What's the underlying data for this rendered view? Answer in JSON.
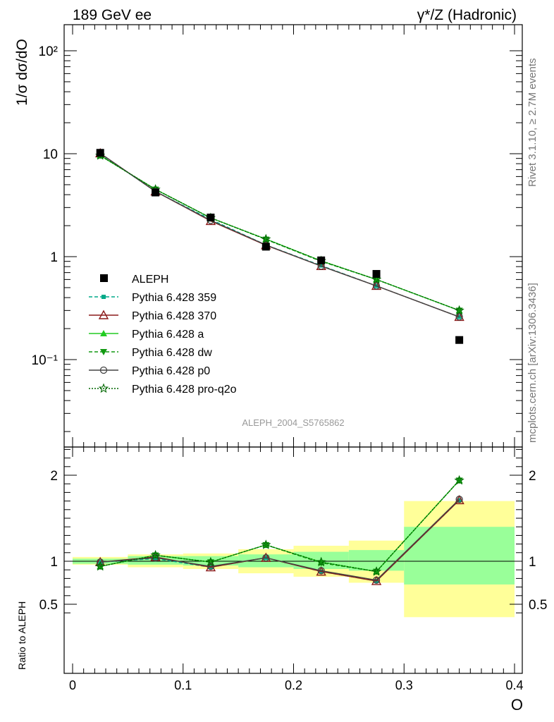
{
  "header": {
    "left": "189 GeV ee",
    "right": "γ*/Z (Hadronic)"
  },
  "side": {
    "rivet": "Rivet 3.1.10, ≥ 2.7M events",
    "mcplots": "mcplots.cern.ch [arXiv:1306.3436]"
  },
  "watermark": "ALEPH_2004_S5765862",
  "chart_data": {
    "type": "line",
    "xlabel": "O",
    "xlim": [
      0,
      0.4
    ],
    "x_ticks": [
      "0",
      "0.1",
      "0.2",
      "0.3",
      "0.4"
    ],
    "main": {
      "ylabel": "1/σ  dσ/dO",
      "yscale": "log",
      "ylim": [
        0.01,
        180
      ],
      "y_ticks": [
        "10⁻¹",
        "1",
        "10",
        "10²"
      ],
      "bins": [
        [
          0,
          0.05
        ],
        [
          0.05,
          0.1
        ],
        [
          0.1,
          0.15
        ],
        [
          0.15,
          0.2
        ],
        [
          0.2,
          0.25
        ],
        [
          0.25,
          0.3
        ],
        [
          0.3,
          0.4
        ]
      ],
      "x": [
        0.025,
        0.075,
        0.125,
        0.175,
        0.225,
        0.275,
        0.35
      ],
      "data": {
        "name": "ALEPH",
        "values": [
          10.2,
          4.2,
          2.4,
          1.25,
          0.92,
          0.68,
          0.155
        ]
      },
      "series": [
        {
          "name": "Pythia 6.428 359",
          "color": "#00aa88",
          "dash": "5,3",
          "marker": "square-small",
          "values": [
            10.0,
            4.3,
            2.3,
            1.3,
            0.82,
            0.52,
            0.26
          ]
        },
        {
          "name": "Pythia 6.428 370",
          "color": "#8b1a1a",
          "dash": "",
          "marker": "triangle-open",
          "values": [
            10.1,
            4.3,
            2.22,
            1.29,
            0.81,
            0.52,
            0.26
          ]
        },
        {
          "name": "Pythia 6.428 a",
          "color": "#22cc22",
          "dash": "",
          "marker": "triangle-filled",
          "values": [
            9.6,
            4.5,
            2.38,
            1.48,
            0.91,
            0.6,
            0.3
          ]
        },
        {
          "name": "Pythia 6.428 dw",
          "color": "#119911",
          "dash": "5,3",
          "marker": "triangle-down",
          "values": [
            9.6,
            4.5,
            2.38,
            1.47,
            0.9,
            0.6,
            0.3
          ]
        },
        {
          "name": "Pythia 6.428 p0",
          "color": "#444444",
          "dash": "",
          "marker": "circle-open",
          "values": [
            10.1,
            4.3,
            2.25,
            1.3,
            0.81,
            0.52,
            0.26
          ]
        },
        {
          "name": "Pythia 6.428 pro-q2o",
          "color": "#006600",
          "dash": "2,2",
          "marker": "star",
          "values": [
            9.6,
            4.5,
            2.38,
            1.48,
            0.91,
            0.6,
            0.3
          ]
        }
      ]
    },
    "ratio": {
      "ylabel": "Ratio to ALEPH",
      "ylim": [
        0.35,
        2.3
      ],
      "y_ticks": [
        "0.5",
        "1",
        "2"
      ],
      "band_outer": [
        [
          0.96,
          1.05
        ],
        [
          0.93,
          1.08
        ],
        [
          0.91,
          1.09
        ],
        [
          0.86,
          1.14
        ],
        [
          0.82,
          1.18
        ],
        [
          0.75,
          1.24
        ],
        [
          0.35,
          1.7
        ]
      ],
      "band_inner": [
        [
          0.97,
          1.03
        ],
        [
          0.96,
          1.06
        ],
        [
          0.95,
          1.06
        ],
        [
          0.93,
          1.08
        ],
        [
          0.91,
          1.11
        ],
        [
          0.89,
          1.13
        ],
        [
          0.73,
          1.4
        ]
      ],
      "series": {
        "Pythia 6.428 359": [
          0.99,
          1.03,
          0.93,
          1.04,
          0.88,
          0.77,
          1.71
        ],
        "Pythia 6.428 370": [
          0.99,
          1.05,
          0.93,
          1.04,
          0.88,
          0.77,
          1.71
        ],
        "Pythia 6.428 a": [
          0.94,
          1.07,
          0.99,
          1.19,
          0.99,
          0.88,
          1.94
        ],
        "Pythia 6.428 dw": [
          0.94,
          1.07,
          0.99,
          1.19,
          0.98,
          0.88,
          1.94
        ],
        "Pythia 6.428 p0": [
          0.99,
          1.04,
          0.94,
          1.04,
          0.89,
          0.78,
          1.72
        ],
        "Pythia 6.428 pro-q2o": [
          0.94,
          1.07,
          0.99,
          1.19,
          0.99,
          0.88,
          1.94
        ]
      }
    }
  }
}
